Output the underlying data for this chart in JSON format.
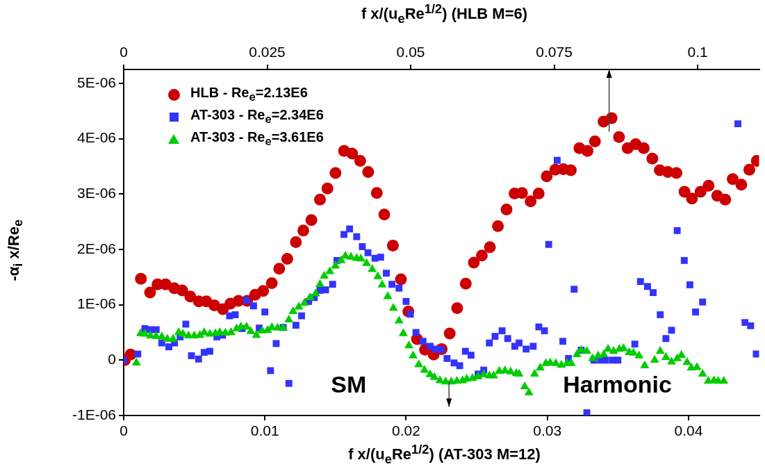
{
  "chart_data": {
    "type": "scatter",
    "xlabel": "f x/(u$_{e}$Re$^{1/2}$) (AT-303 M=12)",
    "x2label": "f x/(u$_{e}$Re$^{1/2}$) (HLB M=6)",
    "ylabel": "-α$_{i}$ x/Re$_{e}$",
    "xlim": [
      0,
      0.045
    ],
    "xticks": [
      0,
      0.01,
      0.02,
      0.03,
      0.04
    ],
    "x2lim": [
      0,
      0.1107
    ],
    "x2ticks": [
      0,
      0.025,
      0.05,
      0.075,
      0.1
    ],
    "ylim": [
      -1e-06,
      5.25e-06
    ],
    "yticks": [
      {
        "value": -1e-06,
        "label": "-1E-06"
      },
      {
        "value": 0,
        "label": "0"
      },
      {
        "value": 1e-06,
        "label": "1E-06"
      },
      {
        "value": 2e-06,
        "label": "2E-06"
      },
      {
        "value": 3e-06,
        "label": "3E-06"
      },
      {
        "value": 4e-06,
        "label": "4E-06"
      },
      {
        "value": 5e-06,
        "label": "5E-06"
      }
    ],
    "grid": false,
    "legend": "top left",
    "annotations": [
      "SM",
      "Harmonic"
    ],
    "series": [
      {
        "name": "HLB - Re$_{e}$=2.13E6",
        "color": "#cc0000",
        "marker": "circle",
        "axis": "x2",
        "x": [
          0.0002,
          0.0012,
          0.003,
          0.0046,
          0.0059,
          0.0073,
          0.0088,
          0.0102,
          0.0116,
          0.0131,
          0.0144,
          0.0158,
          0.0173,
          0.0186,
          0.02,
          0.0215,
          0.0229,
          0.0243,
          0.0258,
          0.0271,
          0.0285,
          0.03,
          0.0313,
          0.0327,
          0.0342,
          0.0355,
          0.0369,
          0.0384,
          0.0398,
          0.0412,
          0.0426,
          0.0441,
          0.0454,
          0.0469,
          0.0483,
          0.0496,
          0.0511,
          0.0525,
          0.054,
          0.0554,
          0.0568,
          0.0581,
          0.0596,
          0.061,
          0.0624,
          0.0638,
          0.0652,
          0.0667,
          0.0681,
          0.0694,
          0.0709,
          0.0723,
          0.0737,
          0.0752,
          0.0766,
          0.0779,
          0.0794,
          0.0808,
          0.0821,
          0.0836,
          0.085,
          0.0863,
          0.0878,
          0.0892,
          0.0906,
          0.0921,
          0.0934,
          0.0948,
          0.0963,
          0.0977,
          0.099,
          0.1005,
          0.1019,
          0.1034,
          0.1048,
          0.1061,
          0.1076,
          0.109,
          0.1103
        ],
        "values": [
          0,
          1e-07,
          1.47e-06,
          1.22e-06,
          1.37e-06,
          1.37e-06,
          1.3e-06,
          1.26e-06,
          1.15e-06,
          1.06e-06,
          1.06e-06,
          9.9e-07,
          9.2e-07,
          1.02e-06,
          1.07e-06,
          1.07e-06,
          1.18e-06,
          1.25e-06,
          1.39e-06,
          1.65e-06,
          1.83e-06,
          2.13e-06,
          2.34e-06,
          2.53e-06,
          2.9e-06,
          3.1e-06,
          3.38e-06,
          3.78e-06,
          3.73e-06,
          3.6e-06,
          3.4e-06,
          3.02e-06,
          2.63e-06,
          2.07e-06,
          1.46e-06,
          8.8e-07,
          3.8e-07,
          1.9e-07,
          1e-07,
          2e-07,
          4.8e-07,
          9.4e-07,
          1.38e-06,
          1.76e-06,
          1.89e-06,
          2.04e-06,
          2.42e-06,
          2.72e-06,
          3.01e-06,
          3.02e-06,
          2.87e-06,
          3.01e-06,
          3.32e-06,
          3.44e-06,
          3.45e-06,
          3.43e-06,
          3.83e-06,
          3.78e-06,
          3.95e-06,
          4.31e-06,
          4.37e-06,
          4.03e-06,
          3.83e-06,
          3.9e-06,
          3.83e-06,
          3.64e-06,
          3.43e-06,
          3.4e-06,
          3.38e-06,
          3.04e-06,
          2.92e-06,
          3.04e-06,
          3.15e-06,
          2.97e-06,
          2.9e-06,
          3.27e-06,
          3.17e-06,
          3.44e-06,
          3.6e-06
        ]
      },
      {
        "name": "AT-303 - Re$_{e}$=2.34E6",
        "color": "#3333ff",
        "marker": "square",
        "x": [
          0.0,
          0.001,
          0.0015,
          0.0019,
          0.0023,
          0.0027,
          0.0032,
          0.0036,
          0.004,
          0.0044,
          0.0048,
          0.0053,
          0.0057,
          0.0061,
          0.0066,
          0.007,
          0.0075,
          0.0079,
          0.0084,
          0.0087,
          0.0092,
          0.0096,
          0.01,
          0.0104,
          0.0108,
          0.0113,
          0.0117,
          0.0122,
          0.0126,
          0.0131,
          0.0135,
          0.0139,
          0.0143,
          0.0148,
          0.0151,
          0.0156,
          0.016,
          0.0165,
          0.0169,
          0.0173,
          0.0178,
          0.0182,
          0.0186,
          0.019,
          0.0195,
          0.02,
          0.0203,
          0.0207,
          0.0212,
          0.0217,
          0.0221,
          0.0225,
          0.0229,
          0.0234,
          0.0238,
          0.0242,
          0.0246,
          0.0251,
          0.0255,
          0.0259,
          0.0263,
          0.0268,
          0.0272,
          0.0277,
          0.028,
          0.0285,
          0.029,
          0.0294,
          0.0298,
          0.0301,
          0.0307,
          0.0311,
          0.0315,
          0.0319,
          0.0324,
          0.0328,
          0.0333,
          0.0338,
          0.0341,
          0.0346,
          0.035,
          0.0362,
          0.0366,
          0.0371,
          0.0375,
          0.038,
          0.0384,
          0.0388,
          0.0392,
          0.0397,
          0.0401,
          0.0405,
          0.041,
          0.0435,
          0.044,
          0.0444,
          0.0448
        ],
        "values": [
          0,
          1.1e-07,
          5.7e-07,
          5.5e-07,
          5.5e-07,
          3.1e-07,
          2.4e-07,
          3.1e-07,
          4.2e-07,
          6.5e-07,
          8e-08,
          2e-08,
          1.4e-07,
          1.6e-07,
          4.2e-07,
          4.5e-07,
          8e-07,
          8.2e-07,
          5.7e-07,
          1.08e-06,
          9.8e-07,
          5.8e-07,
          8.7e-07,
          -1.9e-07,
          3e-07,
          5.9e-07,
          -4.2e-07,
          6.3e-07,
          8e-07,
          1.06e-06,
          1.13e-06,
          1.26e-06,
          1.27e-06,
          1.37e-06,
          1.8e-06,
          2.27e-06,
          2.37e-06,
          2.23e-06,
          2.05e-06,
          1.94e-06,
          1.84e-06,
          1.86e-06,
          1.57e-06,
          1.37e-06,
          1.3e-06,
          1.06e-06,
          8.3e-07,
          5e-07,
          3.4e-07,
          2.5e-07,
          2e-07,
          1.9e-07,
          3e-08,
          -5e-08,
          -1e-07,
          1.6e-07,
          9e-08,
          -2.5e-07,
          -1.8e-07,
          3.1e-07,
          4.3e-07,
          5.3e-07,
          3.9e-07,
          2.5e-07,
          3.1e-07,
          2e-07,
          2.5e-07,
          6e-07,
          5.3e-07,
          2.09e-06,
          3.61e-06,
          3.4e-07,
          3e-08,
          1.28e-06,
          1.8e-07,
          -9.5e-07,
          0,
          0,
          0,
          0,
          0,
          2.9e-07,
          1.42e-06,
          1.33e-06,
          1.22e-06,
          8.2e-07,
          3.9e-07,
          5.4e-07,
          2.34e-06,
          1.8e-06,
          1.36e-06,
          8.7e-07,
          1.05e-06,
          4.27e-06,
          6.8e-07,
          6.2e-07,
          1.1e-07
        ]
      },
      {
        "name": "AT-303 - Re$_{e}$=3.61E6",
        "color": "#00cc00",
        "marker": "triangle",
        "x": [
          0.0009,
          0.0012,
          0.0015,
          0.0019,
          0.0023,
          0.0027,
          0.0031,
          0.0035,
          0.0039,
          0.0042,
          0.0046,
          0.005,
          0.0054,
          0.0057,
          0.0061,
          0.0065,
          0.0068,
          0.0072,
          0.0076,
          0.008,
          0.0083,
          0.0087,
          0.009,
          0.0094,
          0.0098,
          0.0102,
          0.0105,
          0.0109,
          0.0113,
          0.0117,
          0.012,
          0.0124,
          0.0128,
          0.0132,
          0.0136,
          0.0139,
          0.0142,
          0.0146,
          0.015,
          0.0154,
          0.0157,
          0.0161,
          0.0165,
          0.0168,
          0.0172,
          0.0176,
          0.018,
          0.0183,
          0.0187,
          0.0191,
          0.0195,
          0.0198,
          0.0202,
          0.0205,
          0.0209,
          0.0213,
          0.0217,
          0.022,
          0.0224,
          0.0228,
          0.0232,
          0.0236,
          0.024,
          0.0243,
          0.0247,
          0.0251,
          0.0255,
          0.0259,
          0.0262,
          0.0266,
          0.027,
          0.0274,
          0.0278,
          0.028,
          0.0284,
          0.0287,
          0.0291,
          0.0295,
          0.0299,
          0.0302,
          0.0306,
          0.031,
          0.0314,
          0.0317,
          0.0321,
          0.0324,
          0.0328,
          0.0332,
          0.0336,
          0.034,
          0.0343,
          0.0347,
          0.0351,
          0.0354,
          0.0358,
          0.0361,
          0.0365,
          0.0369,
          0.0376,
          0.038,
          0.0384,
          0.0388,
          0.0392,
          0.0395,
          0.0399,
          0.0402,
          0.0406,
          0.041,
          0.0414,
          0.0418,
          0.0421,
          0.0425
        ],
        "values": [
          -5e-08,
          4.8e-07,
          4.7e-07,
          4.4e-07,
          4.3e-07,
          4.2e-07,
          3.8e-07,
          3.8e-07,
          5e-07,
          4.7e-07,
          4.4e-07,
          4.4e-07,
          4.5e-07,
          5e-07,
          4.7e-07,
          4.8e-07,
          5e-07,
          4.9e-07,
          5e-07,
          5.7e-07,
          6e-07,
          6e-07,
          5.2e-07,
          4.5e-07,
          5.3e-07,
          5.4e-07,
          5.9e-07,
          5.8e-07,
          5.8e-07,
          7.3e-07,
          8.8e-07,
          9.6e-07,
          1.03e-06,
          1.13e-06,
          1.2e-06,
          1.37e-06,
          1.52e-06,
          1.6e-06,
          1.7e-06,
          1.8e-06,
          1.88e-06,
          1.86e-06,
          1.84e-06,
          1.83e-06,
          1.75e-06,
          1.64e-06,
          1.51e-06,
          1.36e-06,
          1.15e-06,
          9.4e-07,
          7.1e-07,
          4.8e-07,
          2.6e-07,
          8e-08,
          -8e-08,
          -1.8e-07,
          -2.6e-07,
          -3.1e-07,
          -3.7e-07,
          -3.9e-07,
          -3.9e-07,
          -3.8e-07,
          -3.7e-07,
          -3.4e-07,
          -3.3e-07,
          -3e-07,
          -2.6e-07,
          -2.8e-07,
          -2.8e-07,
          -2e-07,
          -1.9e-07,
          -2.1e-07,
          -2.4e-07,
          -2.5e-07,
          -4.8e-07,
          -5.9e-07,
          -2.5e-07,
          -1.4e-07,
          -6e-08,
          -5e-08,
          -6e-08,
          -9e-08,
          -6e-08,
          -6e-08,
          1e-07,
          1.8e-07,
          1.6e-07,
          3e-08,
          8e-08,
          1e-07,
          2e-07,
          1.6e-07,
          2e-07,
          2.1e-07,
          1.4e-07,
          1.3e-07,
          8e-08,
          -1e-07,
          0.0,
          1.6e-07,
          5e-08,
          -3e-08,
          3e-08,
          9e-08,
          -4e-08,
          -1.4e-07,
          -1.3e-07,
          -2.5e-07,
          -3.8e-07,
          -3.7e-07,
          -3.8e-07,
          -3.8e-07
        ]
      }
    ]
  }
}
